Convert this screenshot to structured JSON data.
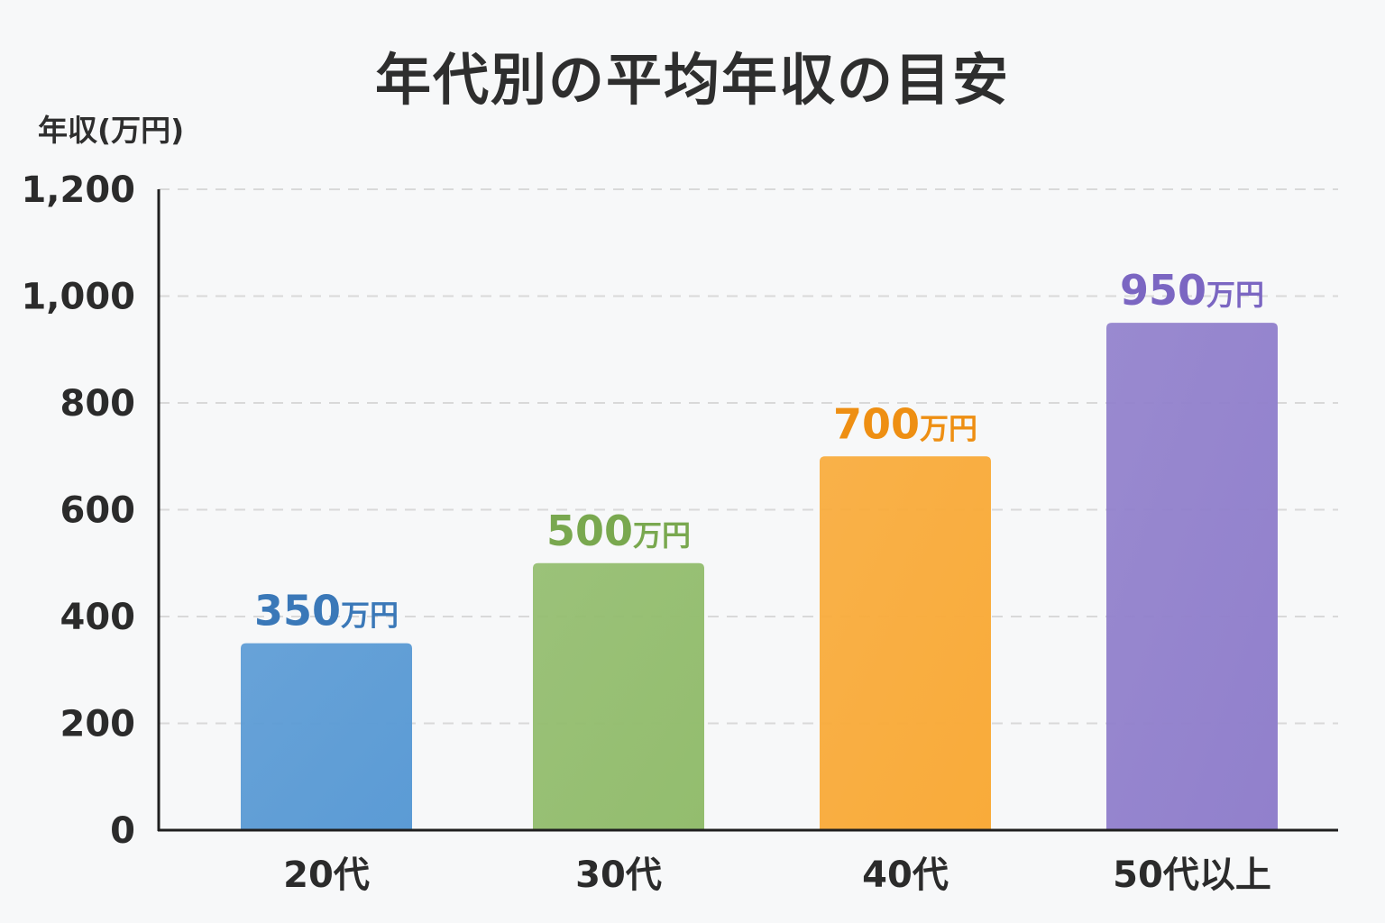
{
  "chart_data": {
    "type": "bar",
    "title": "年代別の平均年収の目安",
    "xlabel": "",
    "ylabel": "年収(万円)",
    "ylim": [
      0,
      1200
    ],
    "yticks": [
      0,
      200,
      400,
      600,
      800,
      1000,
      1200
    ],
    "ytick_labels": [
      "0",
      "200",
      "400",
      "600",
      "800",
      "1,000",
      "1,200"
    ],
    "categories": [
      "20代",
      "30代",
      "40代",
      "50代以上"
    ],
    "values": [
      350,
      500,
      700,
      950
    ],
    "data_labels": [
      {
        "number": "350",
        "unit": "万円"
      },
      {
        "number": "500",
        "unit": "万円"
      },
      {
        "number": "700",
        "unit": "万円"
      },
      {
        "number": "950",
        "unit": "万円"
      }
    ],
    "colors": [
      "#5b9bd5",
      "#93bd6e",
      "#f9ab3a",
      "#9180cc"
    ],
    "label_colors": [
      "#3a78b8",
      "#79a84f",
      "#ee8f13",
      "#7b66c2"
    ],
    "grid": true
  }
}
